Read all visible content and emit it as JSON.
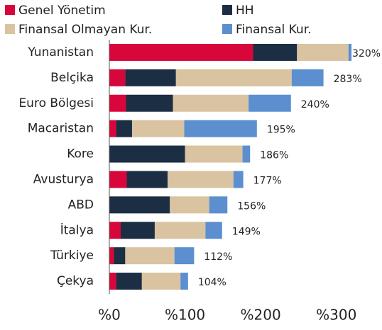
{
  "chart_data": {
    "type": "stacked-barh",
    "categories": [
      "Yunanistan",
      "Belçika",
      "Euro Bölgesi",
      "Macaristan",
      "Kore",
      "Avusturya",
      "ABD",
      "İtalya",
      "Türkiye",
      "Çekya"
    ],
    "series": [
      {
        "name": "Genel Yönetim",
        "color": "#d7063b",
        "values": [
          190,
          21,
          22,
          9,
          0,
          23,
          0,
          15,
          6,
          9
        ]
      },
      {
        "name": "HH",
        "color": "#1c2e44",
        "values": [
          58,
          67,
          62,
          21,
          100,
          54,
          80,
          45,
          15,
          34
        ]
      },
      {
        "name": "Finansal Olmayan Kur.",
        "color": "#d9c3a0",
        "values": [
          68,
          153,
          100,
          69,
          76,
          87,
          52,
          67,
          65,
          51
        ]
      },
      {
        "name": "Finansal Kur.",
        "color": "#5b8fcf",
        "values": [
          4,
          42,
          56,
          96,
          10,
          13,
          24,
          22,
          26,
          10
        ]
      }
    ],
    "total_labels": [
      "320%",
      "283%",
      "240%",
      "195%",
      "186%",
      "177%",
      "156%",
      "149%",
      "112%",
      "104%"
    ],
    "xlim": [
      0,
      350
    ],
    "xticks": [
      {
        "value": 0,
        "label": "%0"
      },
      {
        "value": 100,
        "label": "%100"
      },
      {
        "value": 200,
        "label": "%200"
      },
      {
        "value": 300,
        "label": "%300"
      }
    ]
  }
}
